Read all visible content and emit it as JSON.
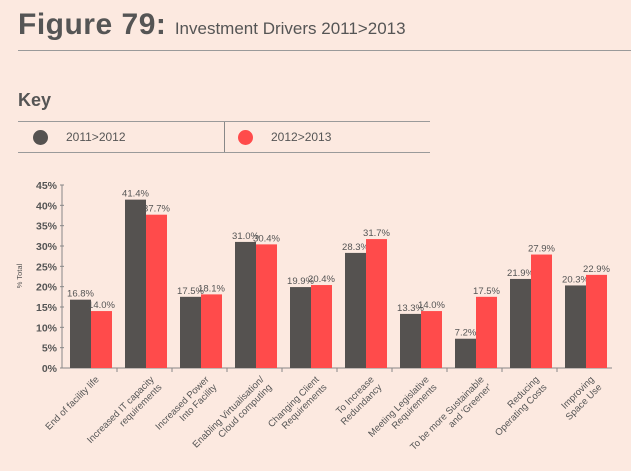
{
  "figure": {
    "number": "Figure 79:",
    "title": "Investment Drivers 2011>2013"
  },
  "key": {
    "label": "Key",
    "items": [
      {
        "label": "2011>2012",
        "color": "#555250"
      },
      {
        "label": "2012>2013",
        "color": "#ff4b4b"
      }
    ]
  },
  "chart_data": {
    "type": "bar",
    "ylabel": "% Total",
    "ylim": [
      0,
      45
    ],
    "yticks": [
      "0%",
      "5%",
      "10%",
      "15%",
      "20%",
      "25%",
      "30%",
      "35%",
      "40%",
      "45%"
    ],
    "categories": [
      [
        "End of facility life"
      ],
      [
        "Increased IT capacity",
        "requirements"
      ],
      [
        "Increased Power",
        "Into Facility"
      ],
      [
        "Enabling Virtualisation/",
        "Cloud computing"
      ],
      [
        "Changing Client",
        "Requirements"
      ],
      [
        "To Increase",
        "Redundancy"
      ],
      [
        "Meeting Legislative",
        "Requirements"
      ],
      [
        "To be more Sustainable",
        "and 'Greener'"
      ],
      [
        "Reducing",
        "Operating Costs"
      ],
      [
        "Improving",
        "Space Use"
      ]
    ],
    "series": [
      {
        "name": "2011>2012",
        "color": "#555250",
        "values": [
          16.8,
          41.4,
          17.5,
          31.0,
          19.9,
          28.3,
          13.3,
          7.2,
          21.9,
          20.3
        ],
        "labels": [
          "16.8%",
          "41.4%",
          "17.5%",
          "31.0%",
          "19.9%",
          "28.3%",
          "13.3%",
          "7.2%",
          "21.9%",
          "20.3%"
        ]
      },
      {
        "name": "2012>2013",
        "color": "#ff4b4b",
        "values": [
          14.0,
          37.7,
          18.1,
          30.4,
          20.4,
          31.7,
          14.0,
          17.5,
          27.9,
          22.9
        ],
        "labels": [
          "14.0%",
          "37.7%",
          "18.1%",
          "30.4%",
          "20.4%",
          "31.7%",
          "14.0%",
          "17.5%",
          "27.9%",
          "22.9%"
        ]
      }
    ]
  }
}
